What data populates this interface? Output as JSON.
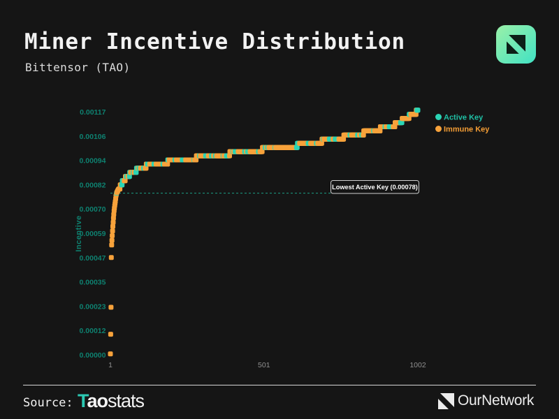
{
  "header": {
    "title": "Miner Incentive Distribution",
    "subtitle": "Bittensor (TAO)",
    "logo": "ournetwork-mark-gradient"
  },
  "colors": {
    "background": "#151515",
    "active_key": "#2bd5b5",
    "immune_key": "#f7a23b",
    "axis_tick_teal": "#0e8170",
    "x_tick_gray": "#909090",
    "annotation_line": "#1c9f87",
    "taostats_teal": "#2cc9b3",
    "logo_gradient_start": "#9af0a8",
    "logo_gradient_end": "#41e2c4"
  },
  "chart_data": {
    "type": "scatter",
    "title": "Miner Incentive Distribution",
    "subtitle": "Bittensor (TAO)",
    "xlabel": "",
    "ylabel": "Incentive",
    "x_ticks": [
      "1",
      "501",
      "1002"
    ],
    "x_tick_values": [
      1,
      501,
      1002
    ],
    "y_ticks": [
      "0.00117",
      "0.00106",
      "0.00094",
      "0.00082",
      "0.00070",
      "0.00059",
      "0.00047",
      "0.00035",
      "0.00023",
      "0.00012",
      "0.00000"
    ],
    "xlim": [
      1,
      1002
    ],
    "ylim": [
      0,
      0.00117
    ],
    "grid": false,
    "legend_position": "top-right",
    "series": [
      {
        "name": "Active Key",
        "color": "#2bd5b5",
        "marker": "square"
      },
      {
        "name": "Immune Key",
        "color": "#f7a23b",
        "marker": "square"
      }
    ],
    "annotation": {
      "text": "Lowest Active Key (0.00078)",
      "value": 0.00078,
      "line_style": "dashed",
      "line_color": "#1c9f87"
    },
    "total_keys": 1002,
    "lowest_active_rank": 21,
    "active_ratio": 0.42,
    "pattern_seed": 42,
    "quantize_step": 2e-05,
    "curve_anchors": [
      [
        1,
        5e-06
      ],
      [
        2,
        0.0001
      ],
      [
        3,
        0.00023
      ],
      [
        4,
        0.00047
      ],
      [
        5,
        0.00053
      ],
      [
        7,
        0.000575
      ],
      [
        9,
        0.00062
      ],
      [
        11,
        0.00066
      ],
      [
        13,
        0.000695
      ],
      [
        15,
        0.00072
      ],
      [
        17,
        0.00074
      ],
      [
        19,
        0.000765
      ],
      [
        21,
        0.00078
      ],
      [
        26,
        0.000795
      ],
      [
        32,
        0.00081
      ],
      [
        38,
        0.000825
      ],
      [
        46,
        0.000845
      ],
      [
        56,
        0.00086
      ],
      [
        68,
        0.000875
      ],
      [
        85,
        0.00089
      ],
      [
        105,
        0.000905
      ],
      [
        130,
        0.000915
      ],
      [
        165,
        0.000925
      ],
      [
        210,
        0.000935
      ],
      [
        260,
        0.000945
      ],
      [
        320,
        0.00096
      ],
      [
        390,
        0.00097
      ],
      [
        460,
        0.000985
      ],
      [
        530,
        0.000995
      ],
      [
        610,
        0.00101
      ],
      [
        690,
        0.00103
      ],
      [
        760,
        0.00105
      ],
      [
        825,
        0.00107
      ],
      [
        880,
        0.00109
      ],
      [
        928,
        0.00111
      ],
      [
        962,
        0.00114
      ],
      [
        985,
        0.00116
      ],
      [
        1002,
        0.001175
      ]
    ]
  },
  "footer": {
    "source_label": "Source:",
    "taostats": {
      "t": "T",
      "ao": "ao",
      "stats": "stats"
    },
    "ournetwork": "OurNetwork"
  }
}
